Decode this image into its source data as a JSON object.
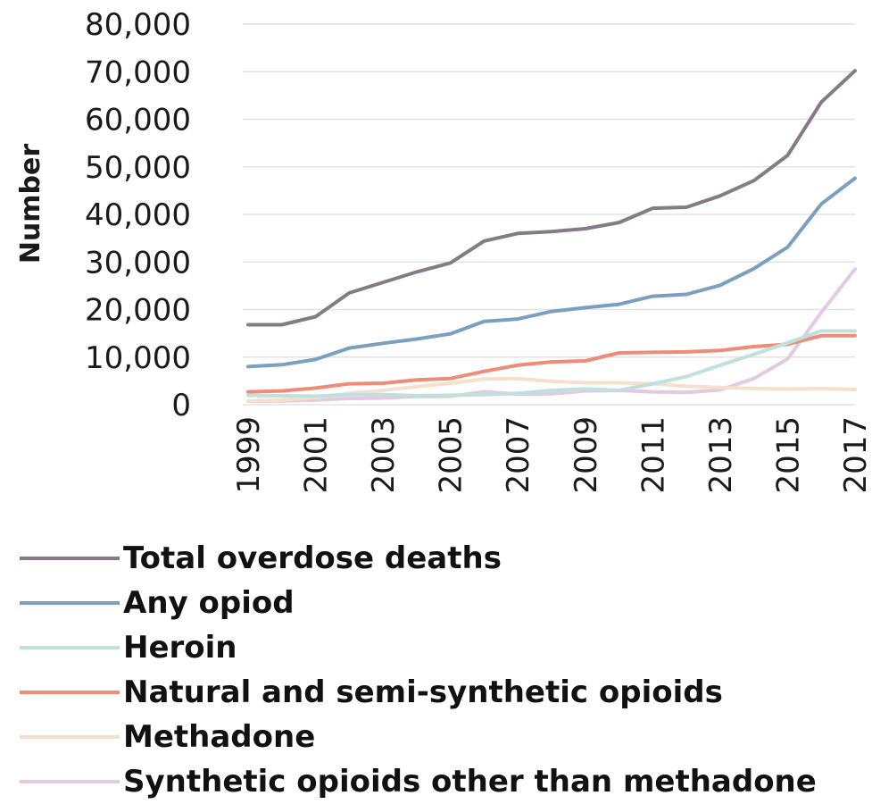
{
  "chart_data": {
    "type": "line",
    "ylabel": "Number",
    "xlabel": "",
    "ylim": [
      0,
      80000
    ],
    "yticks": [
      "0",
      "10,000",
      "20,000",
      "30,000",
      "40,000",
      "50,000",
      "60,000",
      "70,000",
      "80,000"
    ],
    "x": [
      1999,
      2000,
      2001,
      2002,
      2003,
      2004,
      2005,
      2006,
      2007,
      2008,
      2009,
      2010,
      2011,
      2012,
      2013,
      2014,
      2015,
      2016,
      2017
    ],
    "xticks": [
      "1999",
      "2001",
      "2003",
      "2005",
      "2007",
      "2009",
      "2011",
      "2013",
      "2015",
      "2017"
    ],
    "grid": true,
    "legend_position": "bottom",
    "series": [
      {
        "name": "Total overdose deaths",
        "color": "#857a85",
        "values": [
          16800,
          16800,
          18500,
          23500,
          25700,
          27900,
          29800,
          34400,
          36000,
          36400,
          37000,
          38300,
          41300,
          41500,
          43900,
          47100,
          52400,
          63600,
          70200
        ]
      },
      {
        "name": "Any opiod",
        "color": "#7a9fc0",
        "values": [
          8000,
          8400,
          9500,
          11900,
          12900,
          13800,
          14900,
          17500,
          18000,
          19600,
          20400,
          21100,
          22800,
          23200,
          25100,
          28600,
          33100,
          42200,
          47600
        ]
      },
      {
        "name": "Heroin",
        "color": "#bfe0dd",
        "values": [
          1950,
          1850,
          1800,
          2100,
          2100,
          1900,
          2000,
          2100,
          2400,
          3000,
          3300,
          3000,
          4400,
          5900,
          8300,
          10600,
          13000,
          15500,
          15500
        ]
      },
      {
        "name": "Natural and semi-synthetic opioids",
        "color": "#ef8c78",
        "values": [
          2700,
          2900,
          3500,
          4400,
          4500,
          5200,
          5500,
          7000,
          8300,
          9000,
          9200,
          10900,
          11000,
          11100,
          11400,
          12200,
          12700,
          14500,
          14500
        ]
      },
      {
        "name": "Methadone",
        "color": "#f6e0cc",
        "values": [
          800,
          1000,
          1500,
          2400,
          3000,
          3800,
          4500,
          5400,
          5500,
          4900,
          4600,
          4600,
          4400,
          3900,
          3600,
          3400,
          3300,
          3400,
          3200
        ]
      },
      {
        "name": "Synthetic opioids other than methadone",
        "color": "#e3c9e2",
        "values": [
          750,
          800,
          1000,
          1300,
          1400,
          1700,
          1750,
          2700,
          2200,
          2300,
          2900,
          3000,
          2700,
          2600,
          3100,
          5500,
          9600,
          19400,
          28500
        ]
      }
    ]
  }
}
